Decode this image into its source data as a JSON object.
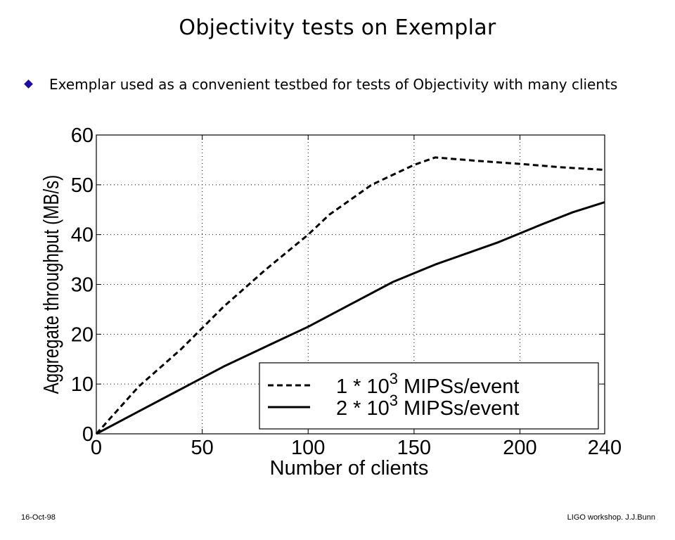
{
  "slide": {
    "title": "Objectivity tests on Exemplar",
    "bullet_icon": "diamond-bullet-icon",
    "bullet": "Exemplar used as a convenient testbed for tests of Objectivity with many clients",
    "footer_date": "16-Oct-98",
    "footer_credit": "LIGO workshop. J.J.Bunn"
  },
  "chart_data": {
    "type": "line",
    "title": "",
    "xlabel": "Number of clients",
    "ylabel": "Aggregate throughput (MB/s)",
    "xlim": [
      0,
      240
    ],
    "ylim": [
      0,
      60
    ],
    "x_ticks": [
      0,
      50,
      100,
      150,
      200,
      240
    ],
    "y_ticks": [
      0,
      10,
      20,
      30,
      40,
      50,
      60
    ],
    "grid": true,
    "legend_position": "bottom-right",
    "series": [
      {
        "name": "1 * 10^3 MIPSs/event",
        "label_prefix": "1 * 10",
        "label_exponent": "3",
        "label_suffix": "MIPSs/event",
        "style": "dashed",
        "x": [
          0,
          20,
          40,
          60,
          80,
          100,
          110,
          130,
          150,
          160,
          180,
          200,
          220,
          240
        ],
        "y": [
          0,
          9.5,
          17,
          25.5,
          33,
          40,
          44,
          50,
          54,
          55.5,
          54.8,
          54.2,
          53.5,
          53
        ]
      },
      {
        "name": "2 * 10^3 MIPSs/event",
        "label_prefix": "2 * 10",
        "label_exponent": "3",
        "label_suffix": "MIPSs/event",
        "style": "solid",
        "x": [
          0,
          20,
          40,
          60,
          80,
          100,
          120,
          140,
          160,
          180,
          190,
          210,
          225,
          240
        ],
        "y": [
          0,
          4.5,
          9,
          13.5,
          17.5,
          21.5,
          26,
          30.5,
          34,
          37,
          38.5,
          42,
          44.5,
          46.5
        ]
      }
    ]
  }
}
